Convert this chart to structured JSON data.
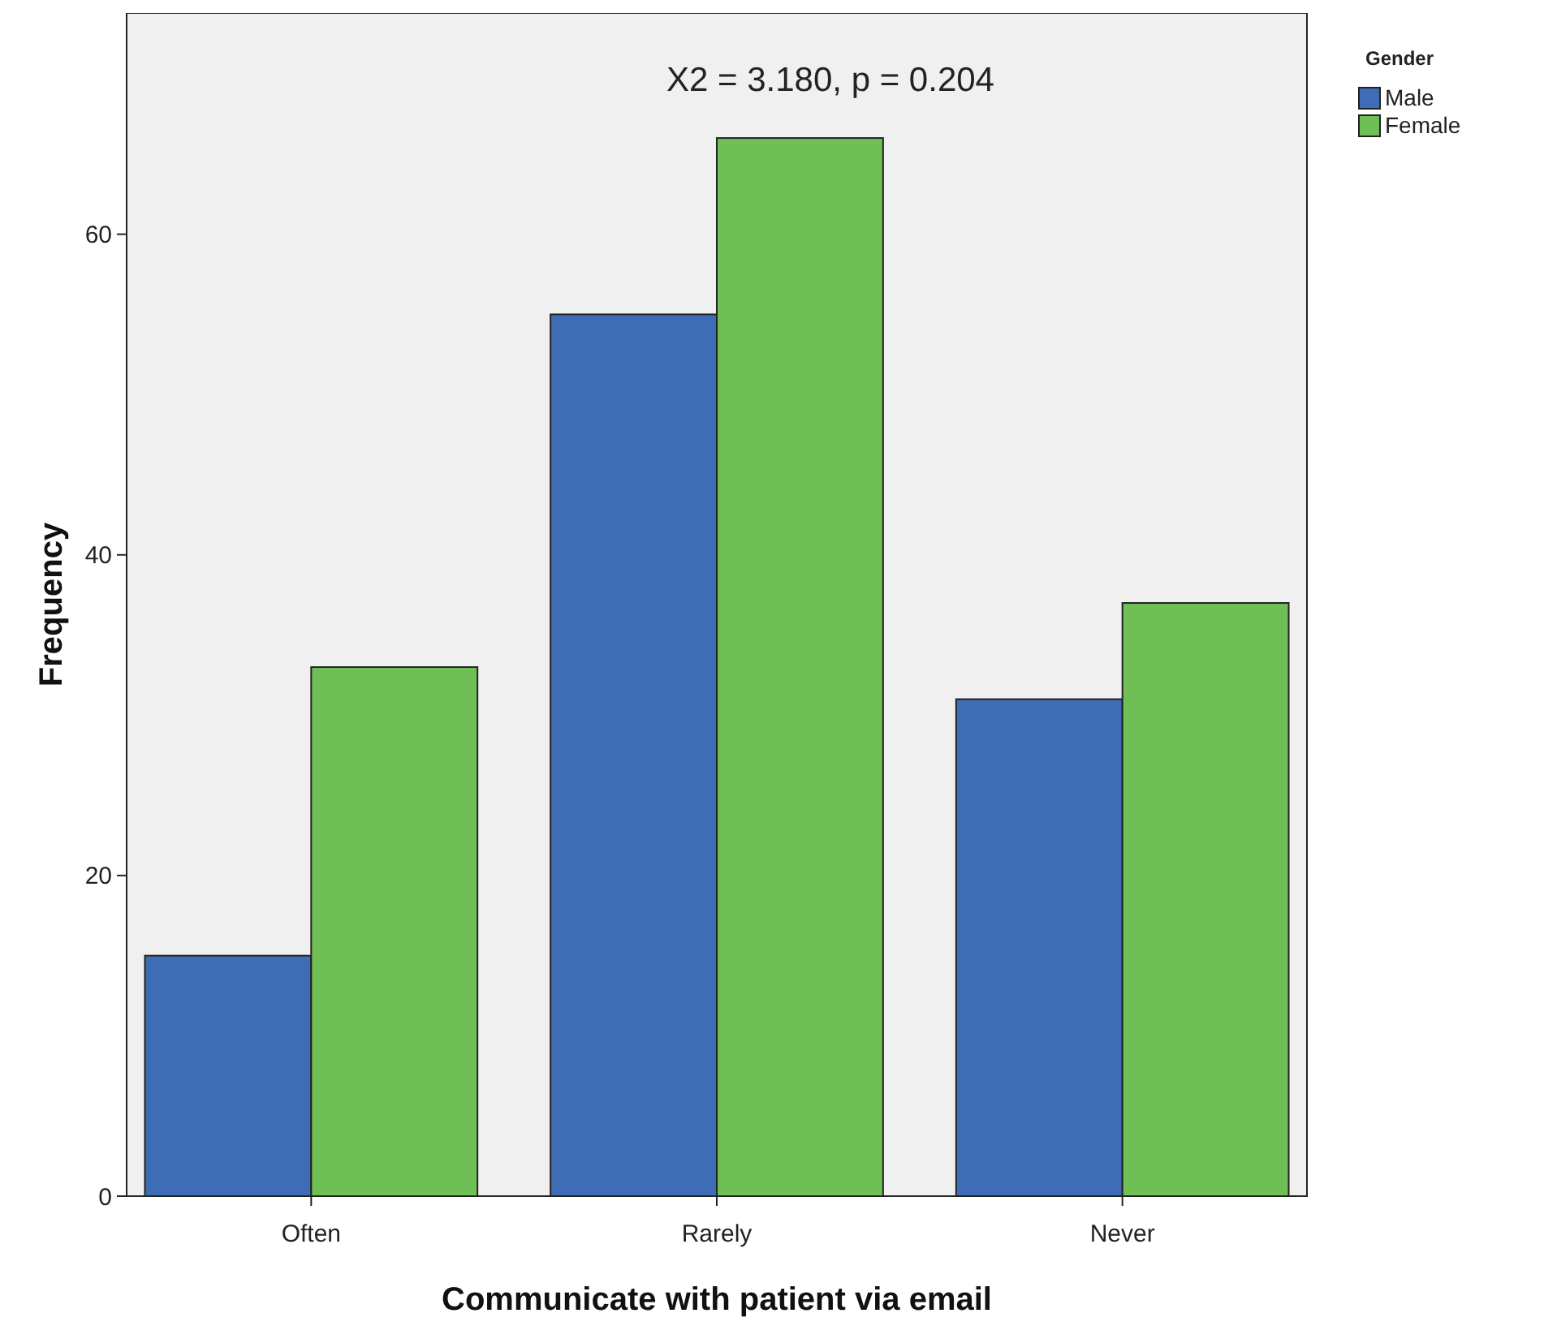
{
  "chart_data": {
    "type": "bar",
    "xlabel": "Communicate with patient via email",
    "ylabel": "Frequency",
    "legend_title": "Gender",
    "legend": "top right",
    "annotations": [
      "X2 = 3.180, p = 0.204"
    ],
    "categories": [
      "Often",
      "Rarely",
      "Never"
    ],
    "ylim": [
      0,
      73.8
    ],
    "yticks": [
      0,
      20,
      40,
      60
    ],
    "grid": false,
    "series": [
      {
        "name": "Male",
        "color": "#3e6db5",
        "values": [
          15,
          55,
          31
        ]
      },
      {
        "name": "Female",
        "color": "#6fbe56",
        "values": [
          33,
          66,
          37
        ]
      }
    ]
  }
}
